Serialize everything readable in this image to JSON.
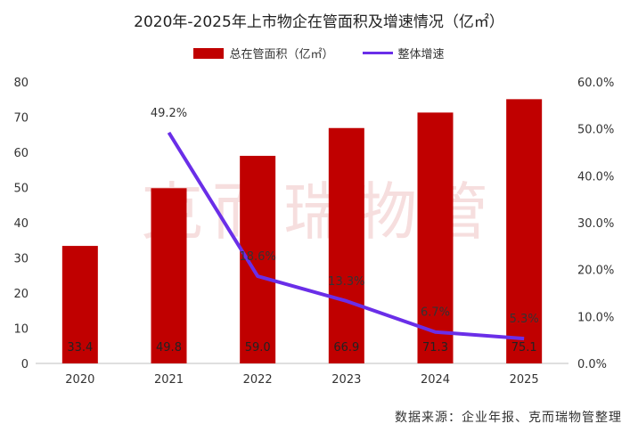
{
  "chart_data": {
    "type": "bar",
    "title": "2020年-2025年上市物企在管面积及增速情况（亿㎡）",
    "categories": [
      "2020",
      "2021",
      "2022",
      "2023",
      "2024",
      "2025"
    ],
    "series": [
      {
        "name": "总在管面积（亿㎡）",
        "type": "bar",
        "axis": "left",
        "values": [
          33.4,
          49.8,
          59.0,
          66.9,
          71.3,
          75.1
        ],
        "labels": [
          "33.4",
          "49.8",
          "59.0",
          "66.9",
          "71.3",
          "75.1"
        ]
      },
      {
        "name": "整体增速",
        "type": "line",
        "axis": "right",
        "values": [
          null,
          49.2,
          18.6,
          13.3,
          6.7,
          5.3
        ],
        "labels": [
          "",
          "49.2%",
          "18.6%",
          "13.3%",
          "6.7%",
          "5.3%"
        ]
      }
    ],
    "y_left": {
      "min": 0,
      "max": 80,
      "ticks": [
        "0",
        "10",
        "20",
        "30",
        "40",
        "50",
        "60",
        "70",
        "80"
      ]
    },
    "y_right": {
      "min": 0,
      "max": 60,
      "ticks": [
        "0.0%",
        "10.0%",
        "20.0%",
        "30.0%",
        "40.0%",
        "50.0%",
        "60.0%"
      ]
    },
    "grid": false,
    "legend_position": "top",
    "colors": {
      "bar": "#c00000",
      "line": "#6a2ee8"
    }
  },
  "watermark": "克而瑞物管",
  "source": "数据来源：企业年报、克而瑞物管整理"
}
